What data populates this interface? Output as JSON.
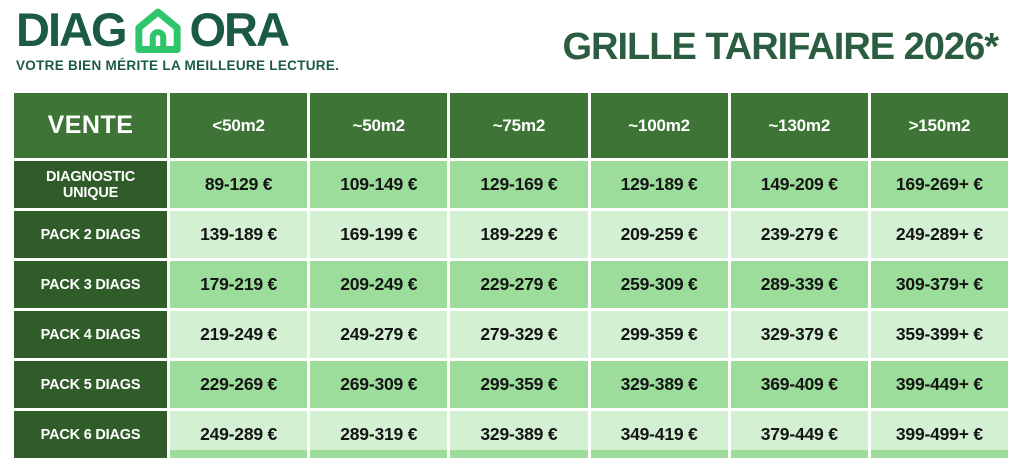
{
  "logo": {
    "text_left": "DIAG",
    "text_right": "ORA",
    "tagline": "VOTRE BIEN MÉRITE LA MEILLEURE LECTURE.",
    "colors": {
      "wordmark": "#1b5a43",
      "house_icon": "#2fc56d"
    }
  },
  "title": "GRILLE TARIFAIRE 2026*",
  "table": {
    "corner_label": "VENTE",
    "columns": [
      "<50m2",
      "~50m2",
      "~75m2",
      "~100m2",
      "~130m2",
      ">150m2"
    ],
    "rows": [
      {
        "label": "DIAGNOSTIC UNIQUE",
        "values": [
          "89-129 €",
          "109-149 €",
          "129-169 €",
          "129-189 €",
          "149-209 €",
          "169-269+ €"
        ]
      },
      {
        "label": "PACK 2 DIAGS",
        "values": [
          "139-189 €",
          "169-199 €",
          "189-229 €",
          "209-259 €",
          "239-279 €",
          "249-289+ €"
        ]
      },
      {
        "label": "PACK 3 DIAGS",
        "values": [
          "179-219 €",
          "209-249 €",
          "229-279 €",
          "259-309 €",
          "289-339 €",
          "309-379+ €"
        ]
      },
      {
        "label": "PACK 4 DIAGS",
        "values": [
          "219-249 €",
          "249-279 €",
          "279-329 €",
          "299-359 €",
          "329-379 €",
          "359-399+ €"
        ]
      },
      {
        "label": "PACK 5 DIAGS",
        "values": [
          "229-269 €",
          "269-309 €",
          "299-359 €",
          "329-389 €",
          "369-409 €",
          "399-449+ €"
        ]
      },
      {
        "label": "PACK 6 DIAGS",
        "values": [
          "249-289 €",
          "289-319 €",
          "329-389 €",
          "349-419 €",
          "379-449 €",
          "399-499+ €"
        ]
      }
    ],
    "colors": {
      "header_bg": "#3e7536",
      "label_bg": "#2f5c28",
      "row_medium": "#9cdd9c",
      "row_light": "#d3f0d3",
      "value_text": "#141414",
      "header_text": "#ffffff"
    }
  }
}
